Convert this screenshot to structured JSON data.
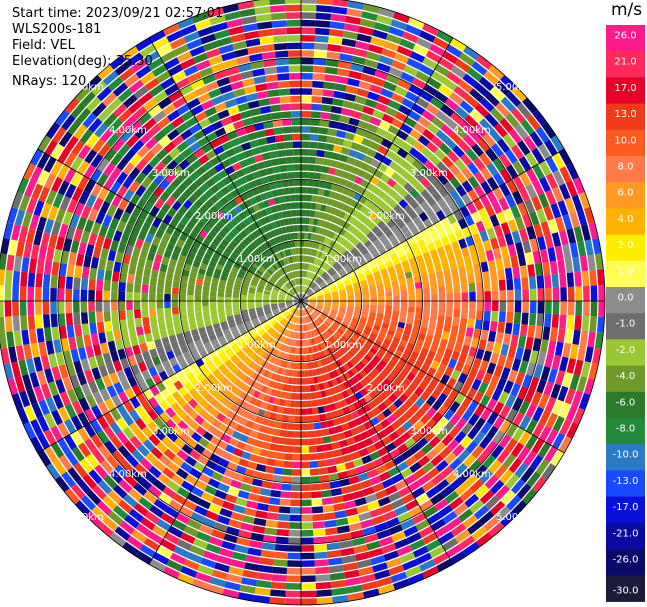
{
  "header": {
    "start_time": "Start time: 2023/09/21 02:57:01",
    "instrument": "WLS200s-181",
    "field": "Field: VEL",
    "elevation": "Elevation(deg): 35.30",
    "nrays": "NRays: 120"
  },
  "colorbar": {
    "unit": "m/s",
    "ticks": [
      "26.0",
      "21.0",
      "17.0",
      "13.0",
      "10.0",
      "8.0",
      "6.0",
      "4.0",
      "2.0",
      "1.0",
      "0.0",
      "-1.0",
      "-2.0",
      "-4.0",
      "-6.0",
      "-8.0",
      "-10.0",
      "-13.0",
      "-17.0",
      "-21.0",
      "-26.0",
      "-30.0"
    ],
    "colors": [
      "#ff1a8c",
      "#ff2a5a",
      "#e8002a",
      "#f03a1a",
      "#ff5a1f",
      "#ff7a4a",
      "#ff9a22",
      "#ffb300",
      "#ffee00",
      "#ffff55",
      "#8c8c8c",
      "#6e6e6e",
      "#9ac832",
      "#6f9a2a",
      "#2a7a2a",
      "#228b3a",
      "#2a7ac8",
      "#1a4aff",
      "#0a10d8",
      "#0a0aa0",
      "#0a0a6a",
      "#1a1a3a"
    ]
  },
  "chart_data": {
    "type": "ppi",
    "field": "VEL",
    "nrays": 120,
    "elevation_deg": 35.3,
    "range_rings_km": [
      1.0,
      2.0,
      3.0,
      4.0,
      5.0
    ],
    "ring_labels": [
      "1.00km",
      "2.00km",
      "3.00km",
      "4.00km",
      "5.00km"
    ],
    "max_range_km": 5.0,
    "spokes_deg": [
      0,
      30,
      60,
      90,
      120,
      150,
      180,
      210,
      240,
      270,
      300,
      330
    ],
    "velocity_pattern": {
      "toward_dir_deg": 330,
      "peak_positive": 13.0,
      "peak_negative": -8.0,
      "noise_start_km": 2.2
    }
  }
}
